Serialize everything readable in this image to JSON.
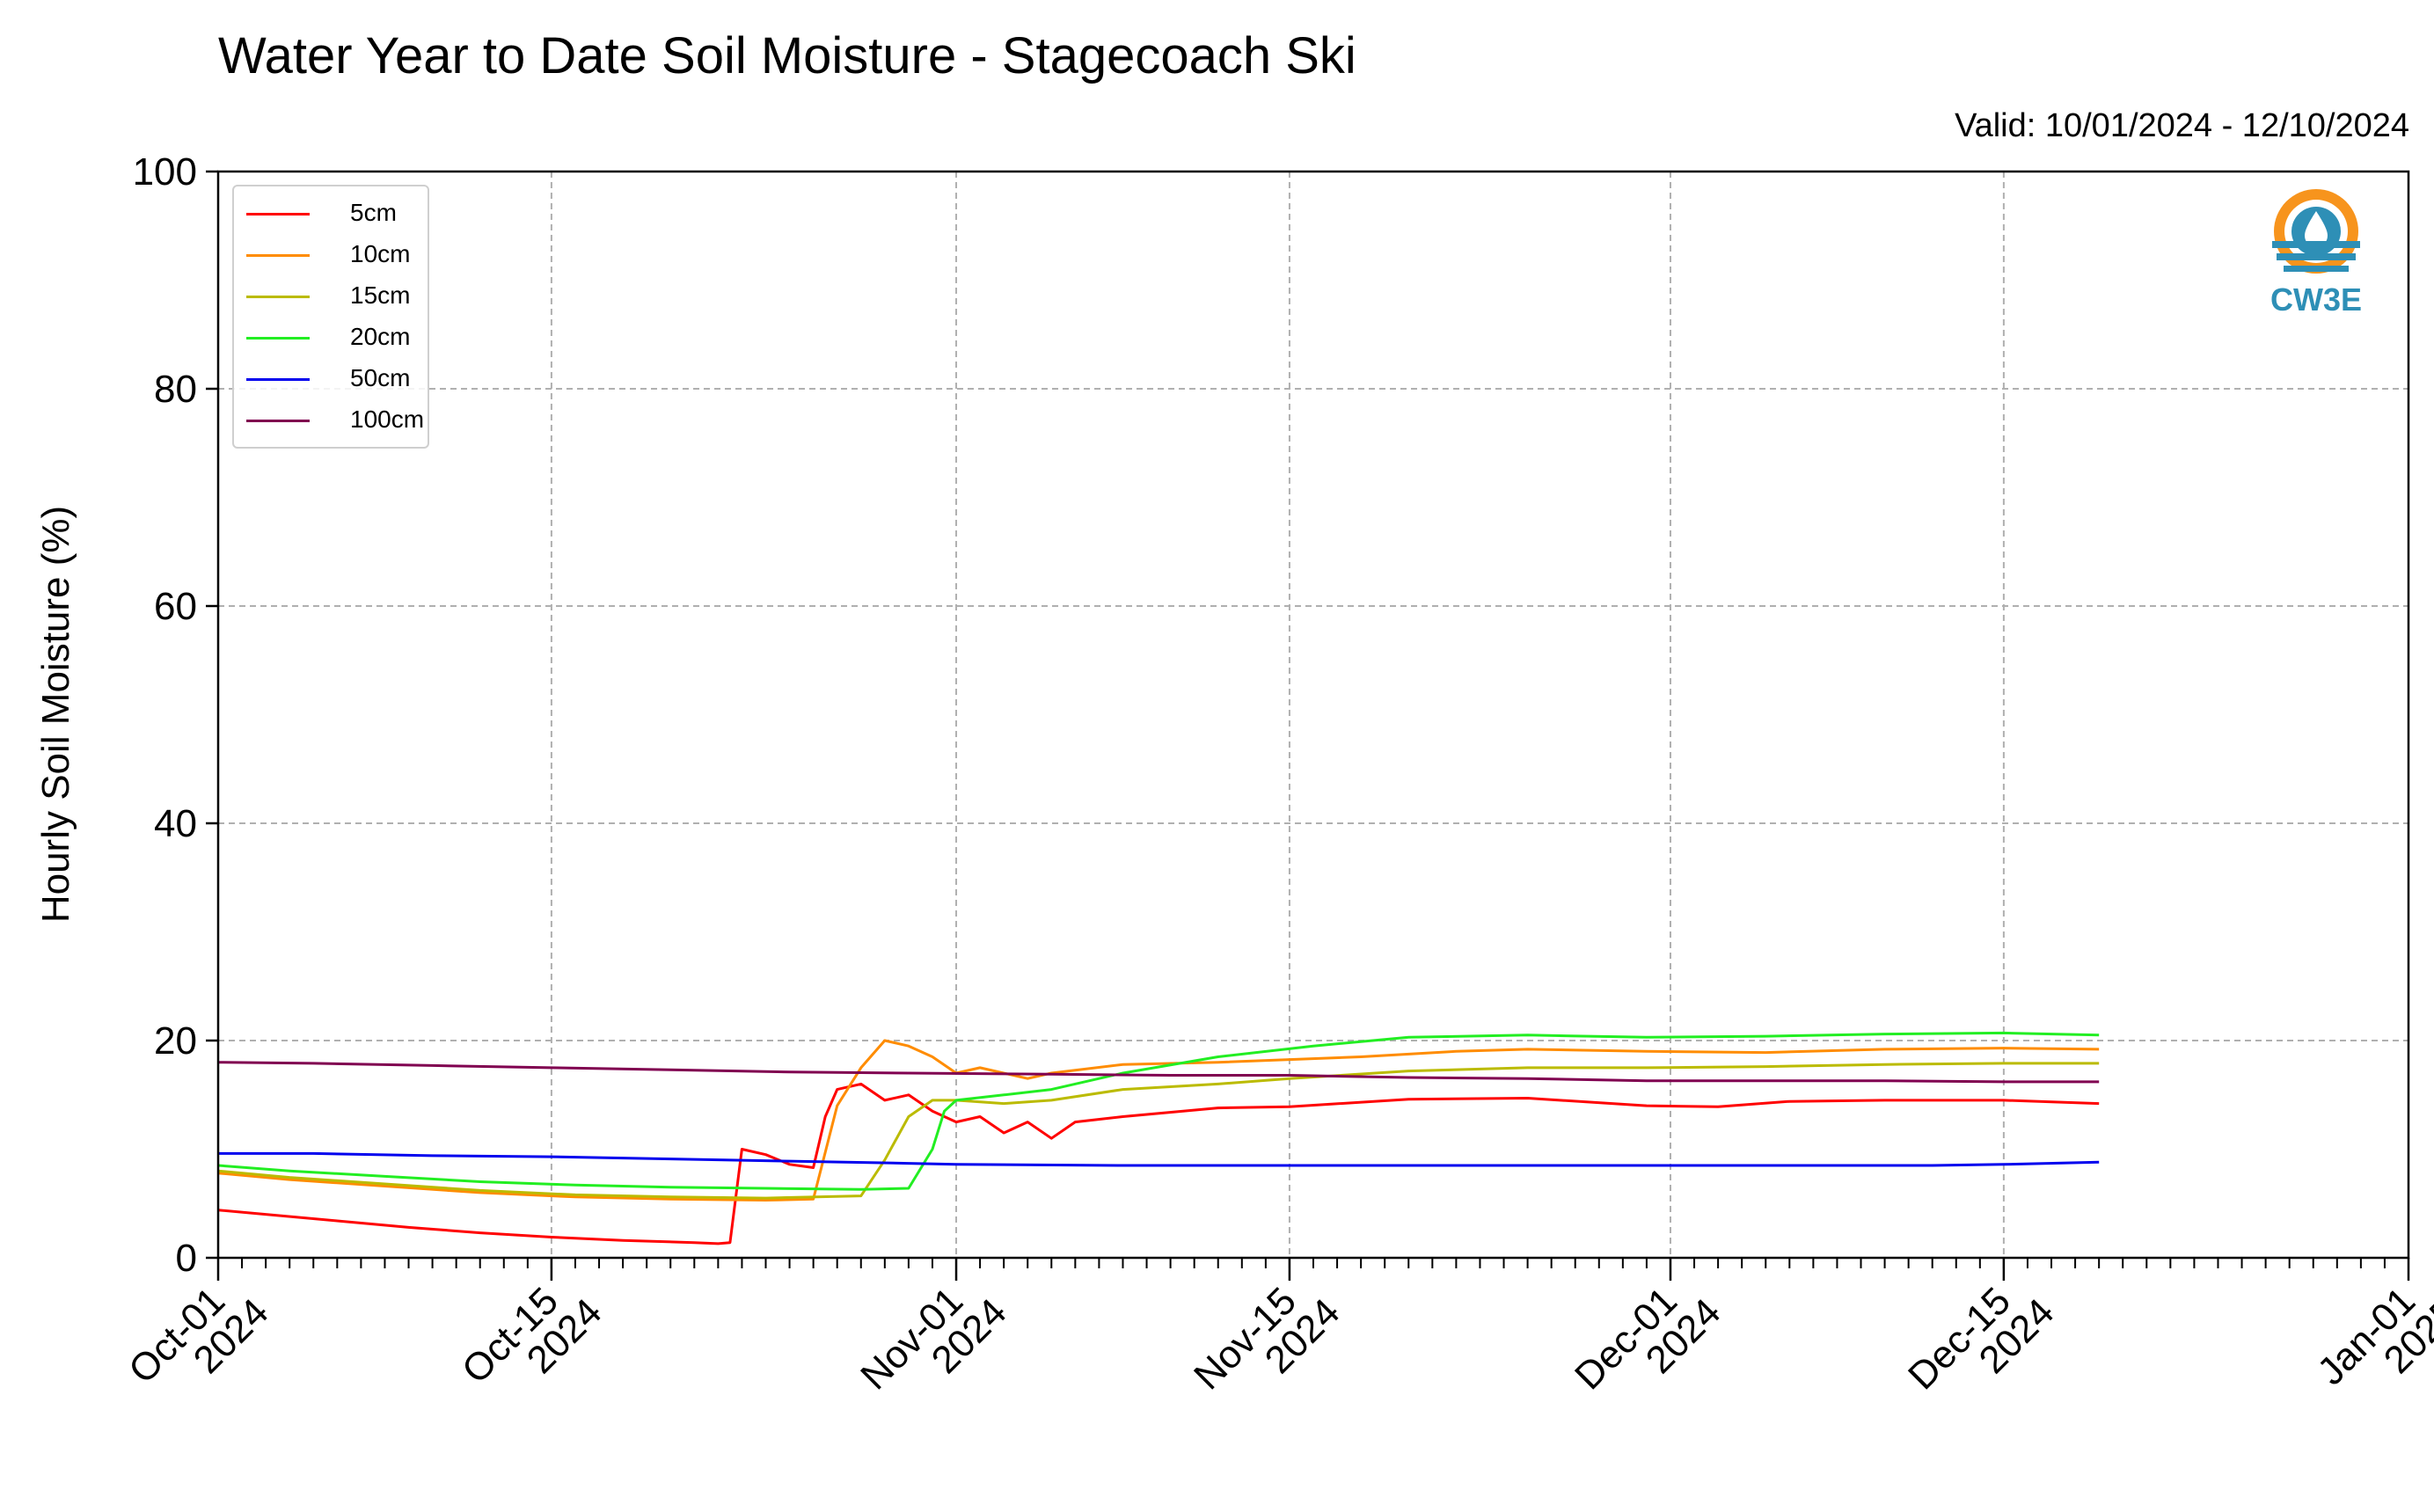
{
  "title": "Water Year to Date Soil Moisture - Stagecoach Ski",
  "subtitle": "Valid: 10/01/2024 - 12/10/2024",
  "logo_text": "CW3E",
  "chart_data": {
    "type": "line",
    "ylabel": "Hourly Soil Moisture (%)",
    "ylim": [
      0,
      100
    ],
    "yticks": [
      0,
      20,
      40,
      60,
      80,
      100
    ],
    "xlim": [
      "2024-10-01",
      "2025-01-01"
    ],
    "xticks": [
      {
        "date": "2024-10-01",
        "line1": "Oct-01",
        "line2": "2024"
      },
      {
        "date": "2024-10-15",
        "line1": "Oct-15",
        "line2": "2024"
      },
      {
        "date": "2024-11-01",
        "line1": "Nov-01",
        "line2": "2024"
      },
      {
        "date": "2024-11-15",
        "line1": "Nov-15",
        "line2": "2024"
      },
      {
        "date": "2024-12-01",
        "line1": "Dec-01",
        "line2": "2024"
      },
      {
        "date": "2024-12-15",
        "line1": "Dec-15",
        "line2": "2024"
      },
      {
        "date": "2025-01-01",
        "line1": "Jan-01",
        "line2": "2025"
      }
    ],
    "grid": true,
    "legend_position": "top-left",
    "series": [
      {
        "name": "5cm",
        "color": "#ff0000",
        "points": [
          [
            "2024-10-01",
            4.4
          ],
          [
            "2024-10-03",
            4.0
          ],
          [
            "2024-10-06",
            3.4
          ],
          [
            "2024-10-09",
            2.8
          ],
          [
            "2024-10-12",
            2.3
          ],
          [
            "2024-10-15",
            1.9
          ],
          [
            "2024-10-18",
            1.6
          ],
          [
            "2024-10-21",
            1.4
          ],
          [
            "2024-10-22",
            1.3
          ],
          [
            "2024-10-22T12",
            1.4
          ],
          [
            "2024-10-23",
            10.0
          ],
          [
            "2024-10-24",
            9.5
          ],
          [
            "2024-10-25",
            8.6
          ],
          [
            "2024-10-26",
            8.3
          ],
          [
            "2024-10-26T12",
            13.0
          ],
          [
            "2024-10-27",
            15.5
          ],
          [
            "2024-10-28",
            16.0
          ],
          [
            "2024-10-29",
            14.5
          ],
          [
            "2024-10-30",
            15.0
          ],
          [
            "2024-10-31",
            13.5
          ],
          [
            "2024-11-01",
            12.5
          ],
          [
            "2024-11-02",
            13.0
          ],
          [
            "2024-11-03",
            11.5
          ],
          [
            "2024-11-04",
            12.5
          ],
          [
            "2024-11-05",
            11.0
          ],
          [
            "2024-11-06",
            12.5
          ],
          [
            "2024-11-08",
            13.0
          ],
          [
            "2024-11-12",
            13.8
          ],
          [
            "2024-11-15",
            13.9
          ],
          [
            "2024-11-20",
            14.6
          ],
          [
            "2024-11-25",
            14.7
          ],
          [
            "2024-11-30",
            14.0
          ],
          [
            "2024-12-03",
            13.9
          ],
          [
            "2024-12-06",
            14.4
          ],
          [
            "2024-12-10",
            14.5
          ],
          [
            "2024-12-15",
            14.5
          ],
          [
            "2024-12-19",
            14.2
          ]
        ]
      },
      {
        "name": "10cm",
        "color": "#ff8c00",
        "points": [
          [
            "2024-10-01",
            7.8
          ],
          [
            "2024-10-04",
            7.2
          ],
          [
            "2024-10-08",
            6.6
          ],
          [
            "2024-10-12",
            6.0
          ],
          [
            "2024-10-16",
            5.6
          ],
          [
            "2024-10-20",
            5.4
          ],
          [
            "2024-10-24",
            5.3
          ],
          [
            "2024-10-26",
            5.4
          ],
          [
            "2024-10-27",
            14.0
          ],
          [
            "2024-10-28",
            17.5
          ],
          [
            "2024-10-29",
            20.0
          ],
          [
            "2024-10-30",
            19.5
          ],
          [
            "2024-10-31",
            18.5
          ],
          [
            "2024-11-01",
            17.0
          ],
          [
            "2024-11-02",
            17.5
          ],
          [
            "2024-11-04",
            16.5
          ],
          [
            "2024-11-05",
            17.0
          ],
          [
            "2024-11-08",
            17.8
          ],
          [
            "2024-11-12",
            18.0
          ],
          [
            "2024-11-18",
            18.5
          ],
          [
            "2024-11-22",
            19.0
          ],
          [
            "2024-11-25",
            19.2
          ],
          [
            "2024-11-30",
            19.0
          ],
          [
            "2024-12-05",
            18.9
          ],
          [
            "2024-12-10",
            19.2
          ],
          [
            "2024-12-15",
            19.3
          ],
          [
            "2024-12-19",
            19.2
          ]
        ]
      },
      {
        "name": "15cm",
        "color": "#bbbb00",
        "points": [
          [
            "2024-10-01",
            8.0
          ],
          [
            "2024-10-04",
            7.4
          ],
          [
            "2024-10-08",
            6.8
          ],
          [
            "2024-10-12",
            6.2
          ],
          [
            "2024-10-16",
            5.8
          ],
          [
            "2024-10-20",
            5.6
          ],
          [
            "2024-10-24",
            5.5
          ],
          [
            "2024-10-28",
            5.7
          ],
          [
            "2024-10-29",
            9.0
          ],
          [
            "2024-10-30",
            13.0
          ],
          [
            "2024-10-31",
            14.5
          ],
          [
            "2024-11-01",
            14.5
          ],
          [
            "2024-11-03",
            14.2
          ],
          [
            "2024-11-05",
            14.5
          ],
          [
            "2024-11-08",
            15.5
          ],
          [
            "2024-11-12",
            16.0
          ],
          [
            "2024-11-15",
            16.5
          ],
          [
            "2024-11-20",
            17.2
          ],
          [
            "2024-11-25",
            17.5
          ],
          [
            "2024-11-30",
            17.5
          ],
          [
            "2024-12-05",
            17.6
          ],
          [
            "2024-12-10",
            17.8
          ],
          [
            "2024-12-15",
            17.9
          ],
          [
            "2024-12-19",
            17.9
          ]
        ]
      },
      {
        "name": "20cm",
        "color": "#22ee22",
        "points": [
          [
            "2024-10-01",
            8.5
          ],
          [
            "2024-10-04",
            8.0
          ],
          [
            "2024-10-08",
            7.5
          ],
          [
            "2024-10-12",
            7.0
          ],
          [
            "2024-10-16",
            6.7
          ],
          [
            "2024-10-20",
            6.5
          ],
          [
            "2024-10-24",
            6.4
          ],
          [
            "2024-10-28",
            6.3
          ],
          [
            "2024-10-30",
            6.4
          ],
          [
            "2024-10-31",
            10.0
          ],
          [
            "2024-10-31T12",
            13.5
          ],
          [
            "2024-11-01",
            14.5
          ],
          [
            "2024-11-03",
            15.0
          ],
          [
            "2024-11-05",
            15.5
          ],
          [
            "2024-11-08",
            17.0
          ],
          [
            "2024-11-12",
            18.5
          ],
          [
            "2024-11-16",
            19.5
          ],
          [
            "2024-11-20",
            20.3
          ],
          [
            "2024-11-25",
            20.5
          ],
          [
            "2024-11-30",
            20.3
          ],
          [
            "2024-12-05",
            20.4
          ],
          [
            "2024-12-10",
            20.6
          ],
          [
            "2024-12-15",
            20.7
          ],
          [
            "2024-12-19",
            20.5
          ]
        ]
      },
      {
        "name": "50cm",
        "color": "#0000ee",
        "points": [
          [
            "2024-10-01",
            9.6
          ],
          [
            "2024-10-05",
            9.6
          ],
          [
            "2024-10-10",
            9.4
          ],
          [
            "2024-10-15",
            9.3
          ],
          [
            "2024-10-20",
            9.1
          ],
          [
            "2024-10-25",
            8.9
          ],
          [
            "2024-10-30",
            8.7
          ],
          [
            "2024-11-01",
            8.6
          ],
          [
            "2024-11-08",
            8.5
          ],
          [
            "2024-11-15",
            8.5
          ],
          [
            "2024-11-22",
            8.5
          ],
          [
            "2024-11-30",
            8.5
          ],
          [
            "2024-12-07",
            8.5
          ],
          [
            "2024-12-12",
            8.5
          ],
          [
            "2024-12-15",
            8.6
          ],
          [
            "2024-12-19",
            8.8
          ]
        ]
      },
      {
        "name": "100cm",
        "color": "#800050",
        "points": [
          [
            "2024-10-01",
            18.0
          ],
          [
            "2024-10-05",
            17.9
          ],
          [
            "2024-10-10",
            17.7
          ],
          [
            "2024-10-15",
            17.5
          ],
          [
            "2024-10-20",
            17.3
          ],
          [
            "2024-10-25",
            17.1
          ],
          [
            "2024-10-30",
            17.0
          ],
          [
            "2024-11-05",
            16.9
          ],
          [
            "2024-11-10",
            16.8
          ],
          [
            "2024-11-15",
            16.8
          ],
          [
            "2024-11-20",
            16.6
          ],
          [
            "2024-11-25",
            16.5
          ],
          [
            "2024-11-30",
            16.3
          ],
          [
            "2024-12-05",
            16.3
          ],
          [
            "2024-12-10",
            16.3
          ],
          [
            "2024-12-15",
            16.2
          ],
          [
            "2024-12-19",
            16.2
          ]
        ]
      }
    ]
  }
}
